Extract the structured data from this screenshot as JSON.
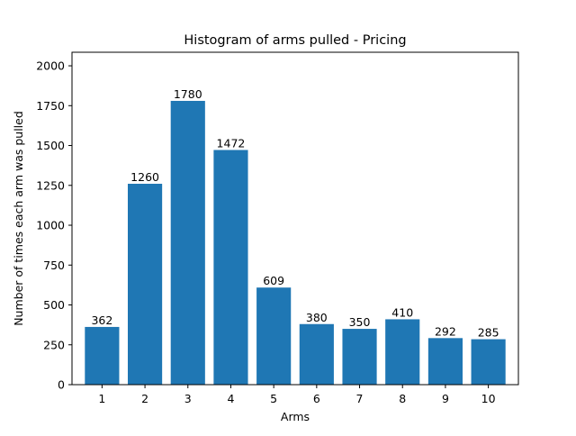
{
  "chart_data": {
    "type": "bar",
    "title": "Histogram of arms pulled - Pricing",
    "xlabel": "Arms",
    "ylabel": "Number of times each arm was pulled",
    "categories": [
      "1",
      "2",
      "3",
      "4",
      "5",
      "6",
      "7",
      "8",
      "9",
      "10"
    ],
    "values": [
      362,
      1260,
      1780,
      1472,
      609,
      380,
      350,
      410,
      292,
      285
    ],
    "data_labels": [
      "362",
      "1260",
      "1780",
      "1472",
      "609",
      "380",
      "350",
      "410",
      "292",
      "285"
    ],
    "ylim": [
      0,
      2000
    ],
    "yticks": [
      0,
      250,
      500,
      750,
      1000,
      1250,
      1500,
      1750,
      2000
    ],
    "ytick_labels": [
      "0",
      "250",
      "500",
      "750",
      "1000",
      "1250",
      "1500",
      "1750",
      "2000"
    ],
    "grid": false,
    "bar_color": "#1f77b4"
  }
}
